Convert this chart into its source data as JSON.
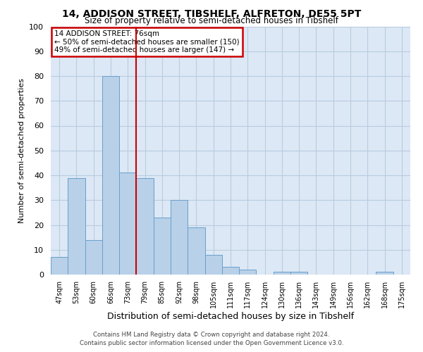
{
  "title": "14, ADDISON STREET, TIBSHELF, ALFRETON, DE55 5PT",
  "subtitle": "Size of property relative to semi-detached houses in Tibshelf",
  "xlabel": "Distribution of semi-detached houses by size in Tibshelf",
  "ylabel": "Number of semi-detached properties",
  "bar_labels": [
    "47sqm",
    "53sqm",
    "60sqm",
    "66sqm",
    "73sqm",
    "79sqm",
    "85sqm",
    "92sqm",
    "98sqm",
    "105sqm",
    "111sqm",
    "117sqm",
    "124sqm",
    "130sqm",
    "136sqm",
    "143sqm",
    "149sqm",
    "156sqm",
    "162sqm",
    "168sqm",
    "175sqm"
  ],
  "bar_values": [
    7,
    39,
    14,
    80,
    41,
    39,
    23,
    30,
    19,
    8,
    3,
    2,
    0,
    1,
    1,
    0,
    0,
    0,
    0,
    1,
    0
  ],
  "bar_color": "#b8d0e8",
  "bar_edge_color": "#6aa0cc",
  "vline_x": 4.5,
  "vline_color": "#cc0000",
  "ylim": [
    0,
    100
  ],
  "annotation_title": "14 ADDISON STREET: 76sqm",
  "annotation_line1": "← 50% of semi-detached houses are smaller (150)",
  "annotation_line2": "49% of semi-detached houses are larger (147) →",
  "annotation_box_color": "#ffffff",
  "annotation_box_edge": "#cc0000",
  "footer1": "Contains HM Land Registry data © Crown copyright and database right 2024.",
  "footer2": "Contains public sector information licensed under the Open Government Licence v3.0.",
  "background_color": "#ffffff",
  "plot_bg_color": "#dce8f5",
  "grid_color": "#b8cce0"
}
